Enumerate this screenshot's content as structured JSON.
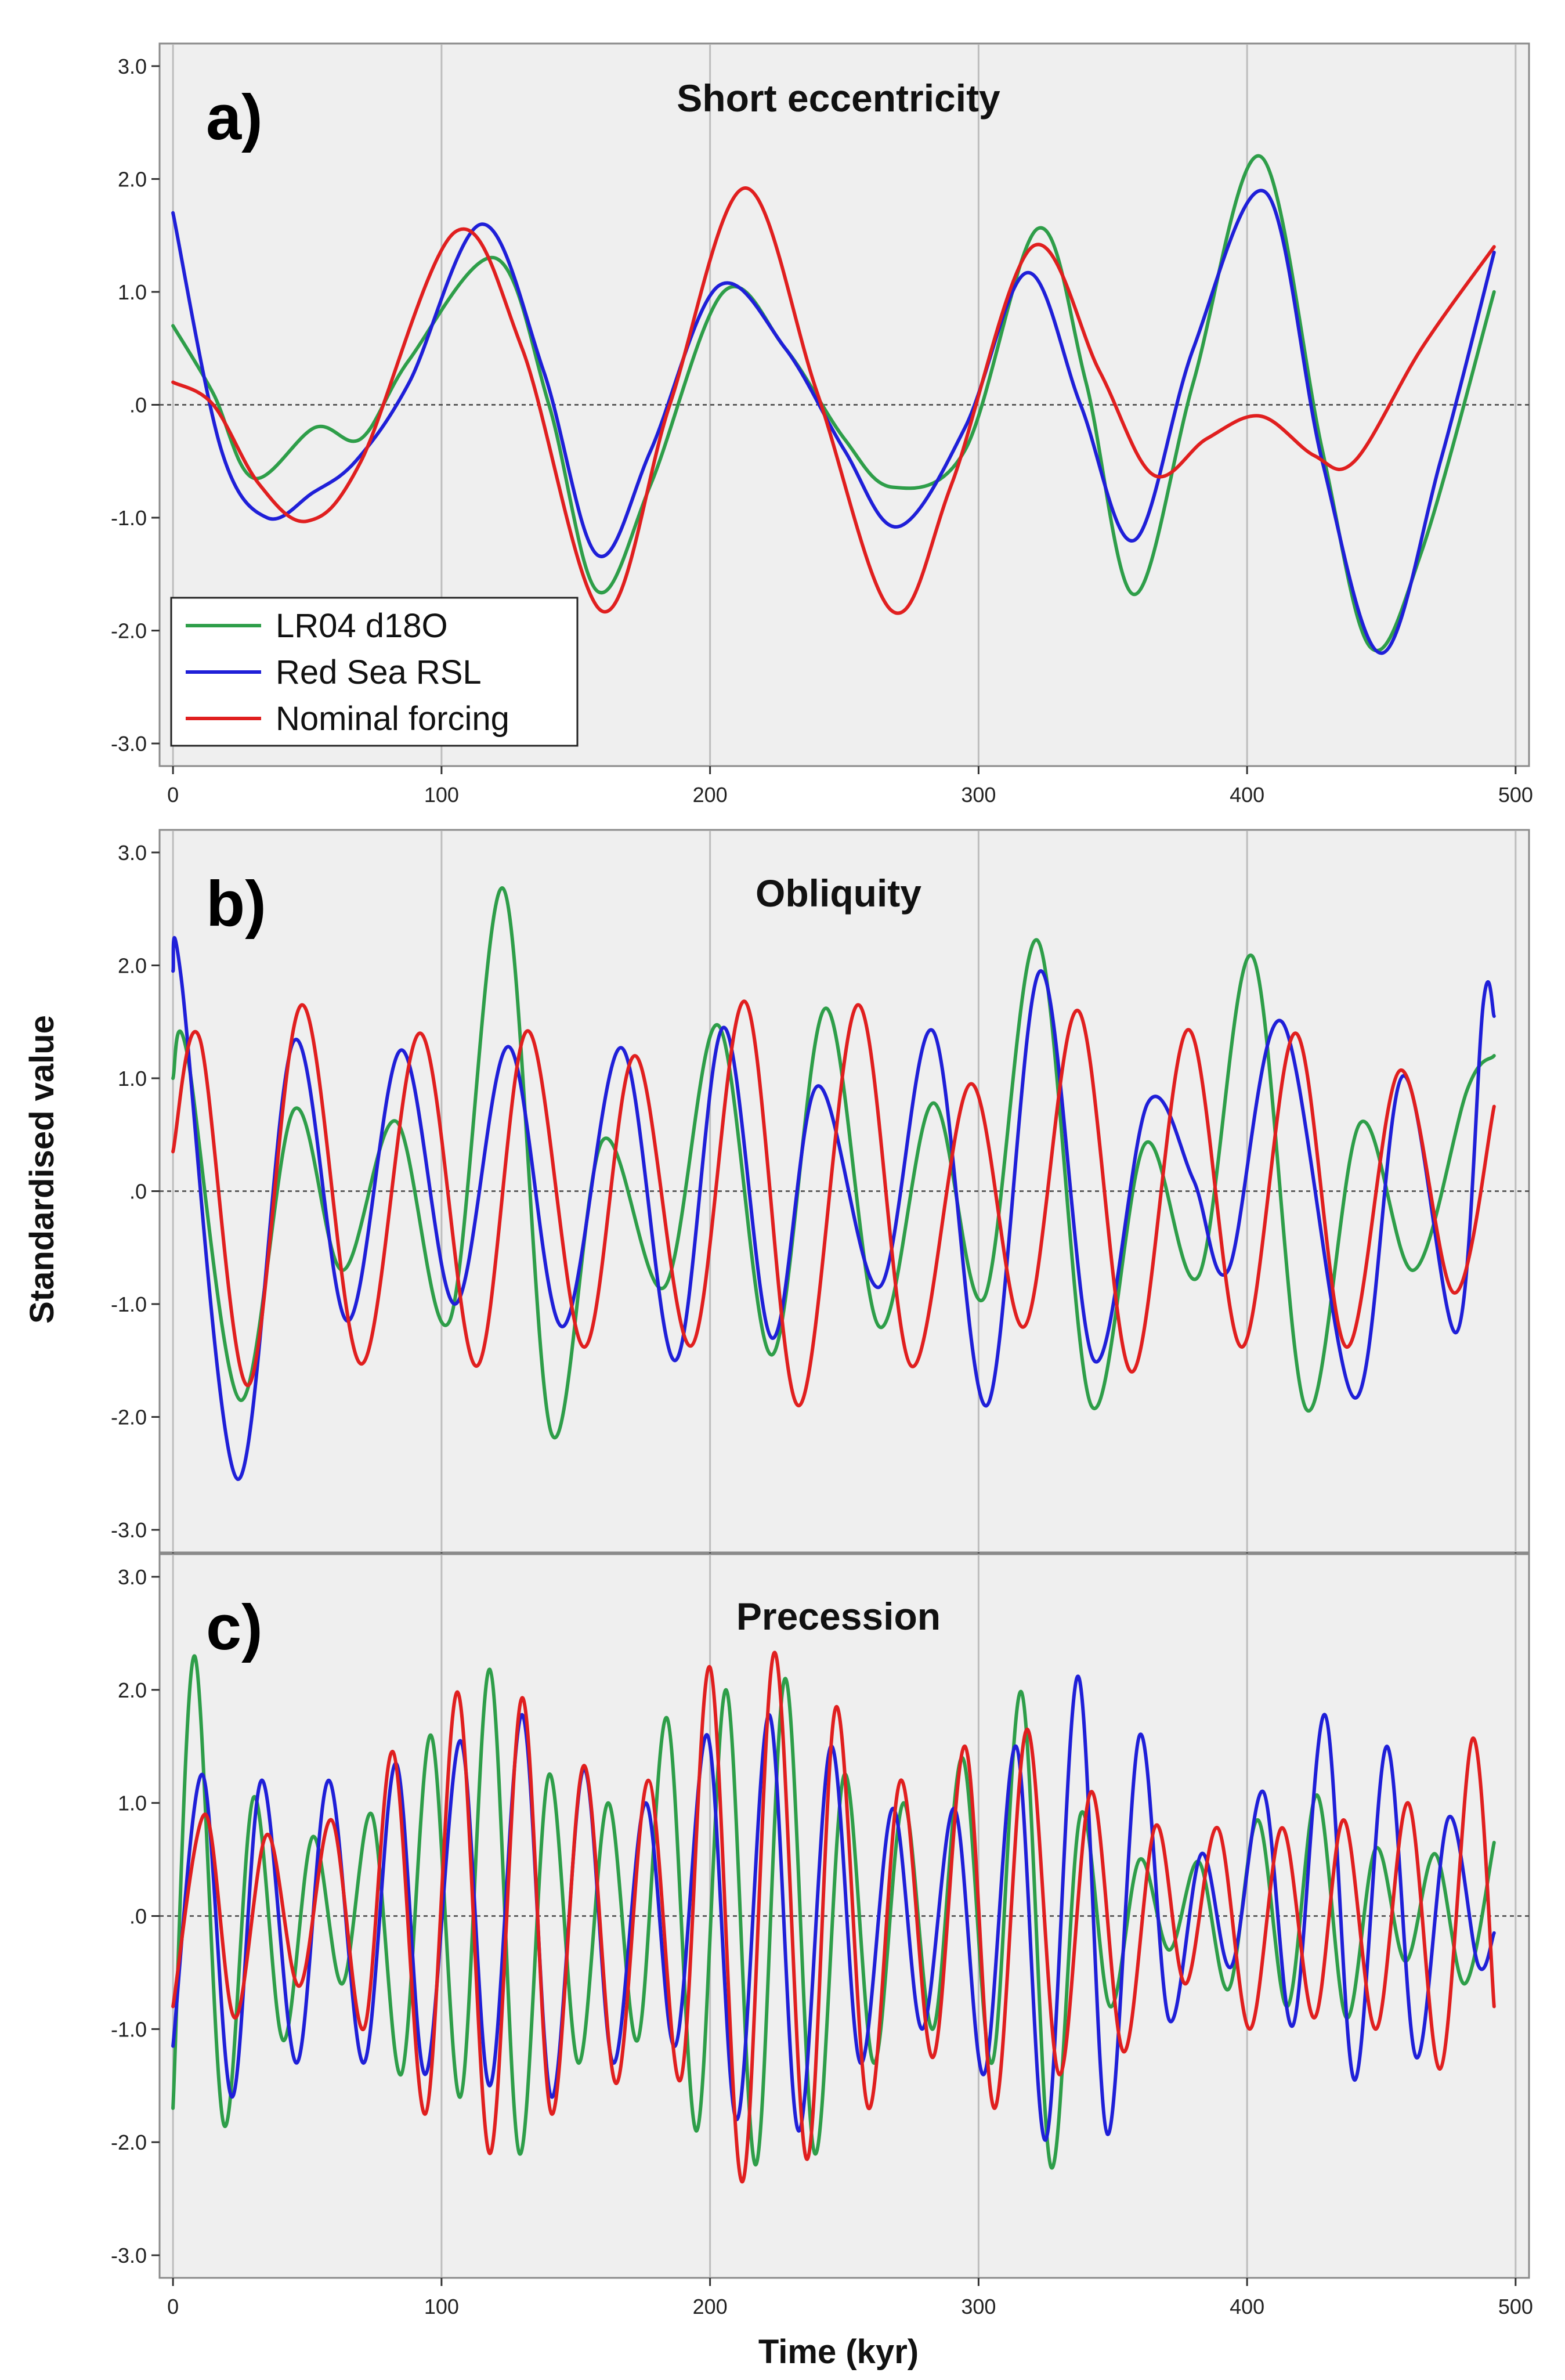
{
  "chart_data": [
    {
      "type": "line",
      "panel_label": "a)",
      "title": "Short eccentricity",
      "xlim": [
        -5,
        505
      ],
      "ylim": [
        -3.2,
        3.2
      ],
      "xticks": [
        "0",
        "100",
        "200",
        "300",
        "400",
        "500"
      ],
      "yticks": [
        "3.0",
        "2.0",
        "1.0",
        ".0",
        "-1.0",
        "-2.0",
        "-3.0"
      ],
      "grid": "vertical",
      "zero_line": "dashed",
      "legend": "bottom-left",
      "series": [
        {
          "name": "LR04 d18O",
          "color": "#2e9e49",
          "x": [
            0,
            15,
            30,
            53,
            70,
            88,
            120,
            140,
            158,
            178,
            205,
            228,
            250,
            268,
            295,
            322,
            340,
            358,
            380,
            405,
            428,
            446,
            465,
            492
          ],
          "y": [
            0.7,
            0.1,
            -0.65,
            -0.2,
            -0.3,
            0.4,
            1.3,
            0.0,
            -1.65,
            -0.7,
            1.0,
            0.5,
            -0.3,
            -0.73,
            -0.4,
            1.56,
            0.2,
            -1.68,
            0.2,
            2.2,
            -0.4,
            -2.15,
            -1.3,
            1.0
          ]
        },
        {
          "name": "Red Sea RSL",
          "color": "#1f1fd8",
          "x": [
            0,
            18,
            35,
            52,
            68,
            88,
            115,
            138,
            158,
            178,
            203,
            228,
            250,
            270,
            295,
            318,
            338,
            358,
            380,
            407,
            428,
            450,
            472,
            492
          ],
          "y": [
            1.7,
            -0.4,
            -1.0,
            -0.78,
            -0.5,
            0.2,
            1.6,
            0.3,
            -1.33,
            -0.4,
            1.05,
            0.5,
            -0.4,
            -1.08,
            -0.2,
            1.17,
            0.0,
            -1.2,
            0.5,
            1.88,
            -0.5,
            -2.2,
            -0.5,
            1.35
          ]
        },
        {
          "name": "Nominal forcing",
          "color": "#e01f1f",
          "x": [
            0,
            15,
            32,
            50,
            70,
            105,
            130,
            160,
            185,
            213,
            240,
            268,
            290,
            320,
            345,
            365,
            385,
            405,
            425,
            440,
            465,
            492
          ],
          "y": [
            0.2,
            0.0,
            -0.7,
            -1.03,
            -0.5,
            1.53,
            0.5,
            -1.83,
            0.0,
            1.92,
            0.1,
            -1.83,
            -0.7,
            1.4,
            0.3,
            -0.62,
            -0.3,
            -0.1,
            -0.45,
            -0.5,
            0.5,
            1.4
          ]
        }
      ]
    },
    {
      "type": "line",
      "panel_label": "b)",
      "title": "Obliquity",
      "xlim": [
        -5,
        505
      ],
      "ylim": [
        -3.2,
        3.2
      ],
      "xticks": [
        "0",
        "100",
        "200",
        "300",
        "400",
        "500"
      ],
      "yticks": [
        "3.0",
        "2.0",
        "1.0",
        ".0",
        "-1.0",
        "-2.0",
        "-3.0"
      ],
      "grid": "vertical",
      "zero_line": "dashed",
      "legend": "none",
      "series": [
        {
          "name": "LR04 d18O",
          "color": "#2e9e49",
          "x": [
            0,
            5,
            25,
            45,
            63,
            83,
            103,
            123,
            141,
            160,
            183,
            203,
            223,
            243,
            263,
            283,
            302,
            322,
            342,
            362,
            382,
            402,
            422,
            442,
            462,
            482,
            492
          ],
          "y": [
            1.0,
            1.25,
            -1.85,
            0.72,
            -0.7,
            0.62,
            -1.15,
            2.68,
            -2.15,
            0.45,
            -0.85,
            1.47,
            -1.45,
            1.62,
            -1.2,
            0.78,
            -0.95,
            2.22,
            -1.9,
            0.42,
            -0.75,
            2.08,
            -1.93,
            0.6,
            -0.7,
            0.9,
            1.2
          ]
        },
        {
          "name": "Red Sea RSL",
          "color": "#1f1fd8",
          "x": [
            0,
            3,
            24,
            45,
            65,
            85,
            105,
            125,
            145,
            167,
            187,
            205,
            223,
            240,
            263,
            283,
            303,
            323,
            343,
            363,
            380,
            393,
            413,
            440,
            458,
            478,
            488,
            492
          ],
          "y": [
            1.95,
            1.9,
            -2.55,
            1.33,
            -1.15,
            1.25,
            -1.0,
            1.28,
            -1.2,
            1.27,
            -1.5,
            1.45,
            -1.3,
            0.93,
            -0.85,
            1.42,
            -1.9,
            1.95,
            -1.5,
            0.78,
            0.1,
            -0.7,
            1.5,
            -1.83,
            1.02,
            -1.25,
            1.67,
            1.55
          ]
        },
        {
          "name": "Nominal forcing",
          "color": "#e01f1f",
          "x": [
            0,
            10,
            28,
            48,
            70,
            92,
            113,
            132,
            153,
            172,
            193,
            213,
            233,
            255,
            275,
            297,
            317,
            337,
            357,
            378,
            398,
            418,
            437,
            457,
            477,
            492
          ],
          "y": [
            0.35,
            1.35,
            -1.72,
            1.65,
            -1.53,
            1.4,
            -1.55,
            1.42,
            -1.38,
            1.2,
            -1.37,
            1.68,
            -1.9,
            1.65,
            -1.55,
            0.95,
            -1.2,
            1.6,
            -1.6,
            1.43,
            -1.38,
            1.4,
            -1.38,
            1.07,
            -0.9,
            0.75
          ]
        }
      ]
    },
    {
      "type": "line",
      "panel_label": "c)",
      "title": "Precession",
      "xlim": [
        -5,
        505
      ],
      "ylim": [
        -3.2,
        3.2
      ],
      "xticks": [
        "0",
        "100",
        "200",
        "300",
        "400",
        "500"
      ],
      "yticks": [
        "3.0",
        "2.0",
        "1.0",
        ".0",
        "-1.0",
        "-2.0",
        "-3.0"
      ],
      "xlabel": "Time (kyr)",
      "grid": "vertical",
      "zero_line": "dashed",
      "legend": "none",
      "series": [
        {
          "name": "LR04 d18O",
          "color": "#2e9e49",
          "x": [
            0,
            8,
            19,
            30,
            41,
            52,
            63,
            74,
            85,
            96,
            107,
            118,
            129,
            140,
            151,
            162,
            173,
            184,
            195,
            206,
            217,
            228,
            239,
            250,
            261,
            272,
            283,
            294,
            305,
            316,
            327,
            338,
            349,
            360,
            371,
            382,
            393,
            404,
            415,
            426,
            437,
            448,
            459,
            470,
            481,
            492
          ],
          "y": [
            -1.7,
            2.3,
            -1.85,
            1.05,
            -1.1,
            0.7,
            -0.6,
            0.9,
            -1.4,
            1.6,
            -1.6,
            2.18,
            -2.1,
            1.25,
            -1.3,
            1.0,
            -1.1,
            1.75,
            -1.9,
            2.0,
            -2.2,
            2.1,
            -2.1,
            1.25,
            -1.3,
            1.0,
            -1.0,
            1.4,
            -1.3,
            1.98,
            -2.22,
            0.9,
            -0.8,
            0.5,
            -0.3,
            0.48,
            -0.65,
            0.85,
            -0.8,
            1.07,
            -0.9,
            0.6,
            -0.4,
            0.55,
            -0.6,
            0.65
          ]
        },
        {
          "name": "Red Sea RSL",
          "color": "#1f1fd8",
          "x": [
            0,
            11,
            22,
            33,
            46,
            58,
            71,
            83,
            94,
            107,
            118,
            130,
            141,
            153,
            164,
            176,
            187,
            199,
            210,
            222,
            233,
            245,
            256,
            268,
            279,
            291,
            302,
            314,
            325,
            337,
            348,
            360,
            371,
            383,
            394,
            406,
            417,
            429,
            440,
            452,
            463,
            475,
            486,
            492
          ],
          "y": [
            -1.15,
            1.25,
            -1.6,
            1.2,
            -1.3,
            1.2,
            -1.3,
            1.35,
            -1.4,
            1.55,
            -1.5,
            1.78,
            -1.6,
            1.3,
            -1.3,
            1.0,
            -1.15,
            1.6,
            -1.8,
            1.78,
            -1.9,
            1.5,
            -1.3,
            0.95,
            -1.0,
            0.95,
            -1.4,
            1.5,
            -1.98,
            2.12,
            -1.93,
            1.6,
            -0.92,
            0.55,
            -0.45,
            1.1,
            -0.97,
            1.78,
            -1.45,
            1.5,
            -1.25,
            0.87,
            -0.43,
            -0.15
          ]
        },
        {
          "name": "Nominal forcing",
          "color": "#e01f1f",
          "x": [
            0,
            12,
            23,
            35,
            47,
            59,
            71,
            82,
            94,
            106,
            118,
            130,
            141,
            153,
            165,
            177,
            189,
            200,
            212,
            224,
            236,
            247,
            259,
            271,
            283,
            295,
            306,
            318,
            330,
            342,
            354,
            366,
            377,
            389,
            401,
            413,
            425,
            436,
            448,
            460,
            472,
            484,
            492
          ],
          "y": [
            -0.8,
            0.9,
            -0.9,
            0.72,
            -0.62,
            0.85,
            -1.0,
            1.45,
            -1.75,
            1.98,
            -2.1,
            1.93,
            -1.75,
            1.33,
            -1.48,
            1.2,
            -1.45,
            2.2,
            -2.35,
            2.33,
            -2.15,
            1.85,
            -1.7,
            1.2,
            -1.25,
            1.5,
            -1.7,
            1.65,
            -1.4,
            1.1,
            -1.2,
            0.8,
            -0.6,
            0.78,
            -1.0,
            0.78,
            -0.9,
            0.85,
            -1.0,
            1.0,
            -1.35,
            1.57,
            -0.8
          ]
        }
      ]
    }
  ],
  "ylabel": "Standardised value"
}
